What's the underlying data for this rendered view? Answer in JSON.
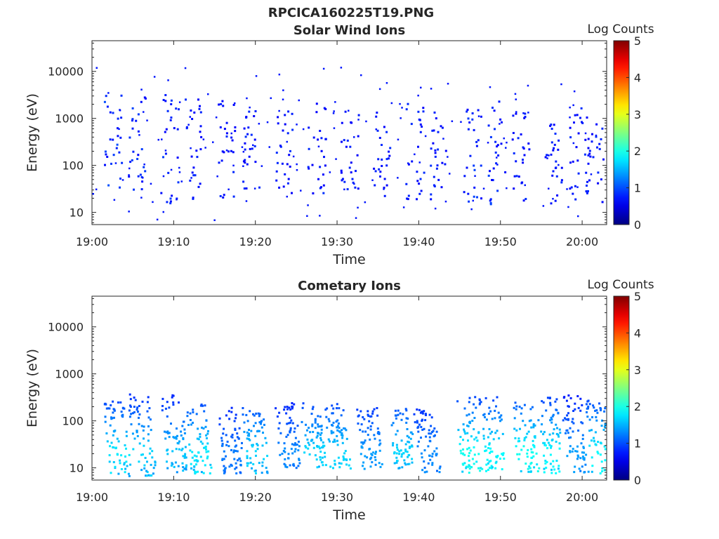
{
  "figure": {
    "title": "RPCICA160225T19.PNG"
  },
  "colormap": "jet",
  "chart_data": [
    {
      "type": "heatmap",
      "title": "Solar Wind Ions",
      "xlabel": "Time",
      "ylabel": "Energy (eV)",
      "yscale": "log",
      "xlim": [
        "19:00",
        "20:03"
      ],
      "ylim": [
        5.5,
        45000
      ],
      "x_ticks": [
        "19:00",
        "19:10",
        "19:20",
        "19:30",
        "19:40",
        "19:50",
        "20:00"
      ],
      "y_ticks": [
        "10",
        "100",
        "1000",
        "10000"
      ],
      "colorbar": {
        "label": "Log Counts",
        "range": [
          0,
          5
        ],
        "ticks": [
          "0",
          "1",
          "2",
          "3",
          "4",
          "5"
        ]
      },
      "counts_description": "sparse single-count pixels (log counts ~0.3-0.7)",
      "bursts": [
        {
          "time": "19:02",
          "energy_range": [
            15,
            3500
          ],
          "log_counts": 0.7
        },
        {
          "time": "19:05",
          "energy_range": [
            25,
            3000
          ],
          "log_counts": 0.6
        },
        {
          "time": "19:09",
          "energy_range": [
            15,
            3500
          ],
          "log_counts": 0.6
        },
        {
          "time": "19:12",
          "energy_range": [
            20,
            3000
          ],
          "log_counts": 0.5
        },
        {
          "time": "19:16",
          "energy_range": [
            20,
            2500
          ],
          "log_counts": 0.5
        },
        {
          "time": "19:19",
          "energy_range": [
            20,
            1500
          ],
          "log_counts": 0.5
        },
        {
          "time": "19:23",
          "energy_range": [
            20,
            1500
          ],
          "log_counts": 0.5
        },
        {
          "time": "19:27",
          "energy_range": [
            15,
            2500
          ],
          "log_counts": 0.5
        },
        {
          "time": "19:31",
          "energy_range": [
            30,
            1500
          ],
          "log_counts": 0.5
        },
        {
          "time": "19:35",
          "energy_range": [
            20,
            1500
          ],
          "log_counts": 0.5
        },
        {
          "time": "19:39",
          "energy_range": [
            20,
            2500
          ],
          "log_counts": 0.5
        },
        {
          "time": "19:42",
          "energy_range": [
            20,
            2500
          ],
          "log_counts": 0.5
        },
        {
          "time": "19:46",
          "energy_range": [
            15,
            2500
          ],
          "log_counts": 0.6
        },
        {
          "time": "19:49",
          "energy_range": [
            15,
            2500
          ],
          "log_counts": 0.6
        },
        {
          "time": "19:52",
          "energy_range": [
            15,
            1500
          ],
          "log_counts": 0.5
        },
        {
          "time": "19:56",
          "energy_range": [
            15,
            1500
          ],
          "log_counts": 0.5
        },
        {
          "time": "19:59",
          "energy_range": [
            15,
            2000
          ],
          "log_counts": 0.5
        },
        {
          "time": "20:01",
          "energy_range": [
            15,
            900
          ],
          "log_counts": 0.5
        }
      ]
    },
    {
      "type": "heatmap",
      "title": "Cometary Ions",
      "xlabel": "Time",
      "ylabel": "Energy (eV)",
      "yscale": "log",
      "xlim": [
        "19:00",
        "20:03"
      ],
      "ylim": [
        5.5,
        45000
      ],
      "x_ticks": [
        "19:00",
        "19:10",
        "19:20",
        "19:30",
        "19:40",
        "19:50",
        "20:00"
      ],
      "y_ticks": [
        "10",
        "100",
        "1000",
        "10000"
      ],
      "colorbar": {
        "label": "Log Counts",
        "range": [
          0,
          5
        ],
        "ticks": [
          "0",
          "1",
          "2",
          "3",
          "4",
          "5"
        ]
      },
      "counts_description": "dense bursts, peak log counts ~1.7 near 20-30 eV",
      "bursts": [
        {
          "time": "19:02",
          "energy_range": [
            7,
            300
          ],
          "log_counts": 1.5
        },
        {
          "time": "19:05",
          "energy_range": [
            7,
            400
          ],
          "log_counts": 1.4
        },
        {
          "time": "19:09",
          "energy_range": [
            8,
            400
          ],
          "log_counts": 1.3
        },
        {
          "time": "19:12",
          "energy_range": [
            8,
            250
          ],
          "log_counts": 1.5
        },
        {
          "time": "19:16",
          "energy_range": [
            8,
            200
          ],
          "log_counts": 0.9
        },
        {
          "time": "19:19",
          "energy_range": [
            8,
            200
          ],
          "log_counts": 1.4
        },
        {
          "time": "19:23",
          "energy_range": [
            10,
            250
          ],
          "log_counts": 1.0
        },
        {
          "time": "19:26",
          "energy_range": [
            10,
            250
          ],
          "log_counts": 1.4
        },
        {
          "time": "19:29",
          "energy_range": [
            10,
            250
          ],
          "log_counts": 1.4
        },
        {
          "time": "19:33",
          "energy_range": [
            10,
            200
          ],
          "log_counts": 1.1
        },
        {
          "time": "19:37",
          "energy_range": [
            10,
            200
          ],
          "log_counts": 1.4
        },
        {
          "time": "19:40",
          "energy_range": [
            8,
            200
          ],
          "log_counts": 1.0
        },
        {
          "time": "19:45",
          "energy_range": [
            8,
            350
          ],
          "log_counts": 1.7
        },
        {
          "time": "19:48",
          "energy_range": [
            8,
            350
          ],
          "log_counts": 1.6
        },
        {
          "time": "19:52",
          "energy_range": [
            8,
            300
          ],
          "log_counts": 1.7
        },
        {
          "time": "19:55",
          "energy_range": [
            8,
            350
          ],
          "log_counts": 1.6
        },
        {
          "time": "19:58",
          "energy_range": [
            8,
            400
          ],
          "log_counts": 1.1
        },
        {
          "time": "20:01",
          "energy_range": [
            8,
            300
          ],
          "log_counts": 1.6
        }
      ]
    }
  ]
}
